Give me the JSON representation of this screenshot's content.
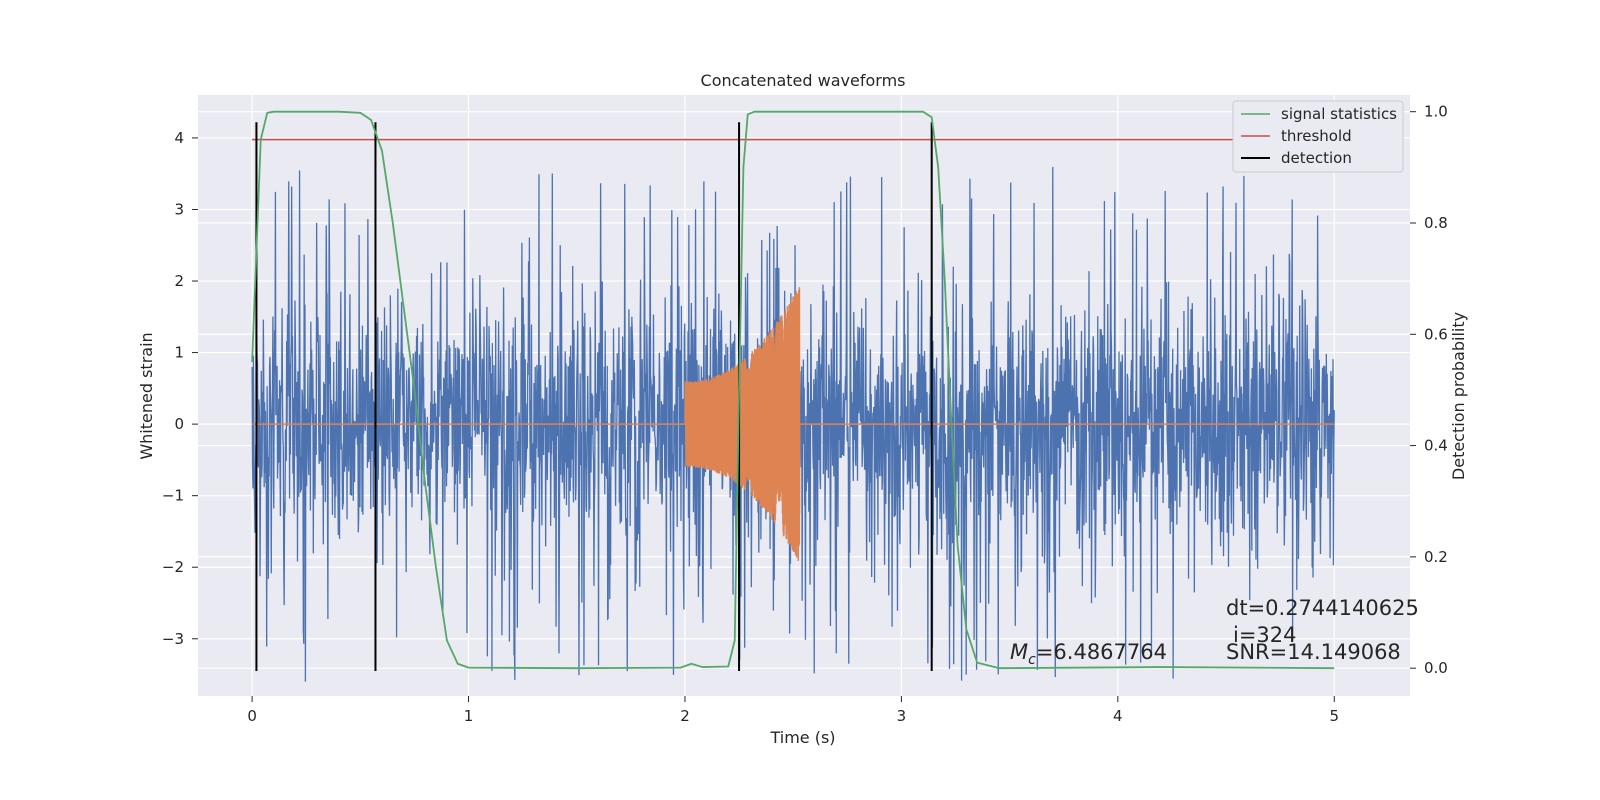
{
  "chart_data": {
    "type": "line",
    "title": "Concatenated waveforms",
    "xlabel": "Time (s)",
    "ylabel": "Whitened strain",
    "y2label": "Detection probability",
    "xlim": [
      -0.25,
      5.35
    ],
    "ylim": [
      -3.8,
      4.6
    ],
    "y2lim": [
      -0.05,
      1.03
    ],
    "xticks": [
      "0",
      "1",
      "2",
      "3",
      "4",
      "5"
    ],
    "xtick_values": [
      0,
      1,
      2,
      3,
      4,
      5
    ],
    "yticks": [
      "−3",
      "−2",
      "−1",
      "0",
      "1",
      "2",
      "3",
      "4"
    ],
    "ytick_values": [
      -3,
      -2,
      -1,
      0,
      1,
      2,
      3,
      4
    ],
    "y2ticks": [
      "0.0",
      "0.2",
      "0.4",
      "0.6",
      "0.8",
      "1.0"
    ],
    "y2tick_values": [
      0.0,
      0.2,
      0.4,
      0.6,
      0.8,
      1.0
    ],
    "grid": true,
    "legend_position": "top-right",
    "series": [
      {
        "name": "",
        "kind": "noisy strain",
        "color": "#4c72b0",
        "x_range": [
          0,
          5
        ],
        "typical_amplitude": 1.15,
        "peak_amplitude": 3.6
      },
      {
        "name": "",
        "kind": "injected chirp",
        "color": "#dd8452",
        "chirp_start": 2.0,
        "chirp_end": 2.53,
        "start_amplitude": 0.6,
        "peak_amplitude": 1.95
      },
      {
        "name": "signal statistics",
        "axis": "right",
        "color": "#55a868",
        "points": [
          [
            0.0,
            0.55
          ],
          [
            0.02,
            0.75
          ],
          [
            0.04,
            0.95
          ],
          [
            0.07,
            0.998
          ],
          [
            0.1,
            1.0
          ],
          [
            0.4,
            1.0
          ],
          [
            0.5,
            0.998
          ],
          [
            0.55,
            0.985
          ],
          [
            0.6,
            0.93
          ],
          [
            0.65,
            0.8
          ],
          [
            0.7,
            0.65
          ],
          [
            0.75,
            0.5
          ],
          [
            0.8,
            0.33
          ],
          [
            0.85,
            0.18
          ],
          [
            0.9,
            0.05
          ],
          [
            0.95,
            0.008
          ],
          [
            1.0,
            0.001
          ],
          [
            1.5,
            0.0
          ],
          [
            1.98,
            0.001
          ],
          [
            2.03,
            0.008
          ],
          [
            2.08,
            0.002
          ],
          [
            2.2,
            0.003
          ],
          [
            2.23,
            0.05
          ],
          [
            2.25,
            0.5
          ],
          [
            2.27,
            0.9
          ],
          [
            2.29,
            0.995
          ],
          [
            2.32,
            1.0
          ],
          [
            3.1,
            1.0
          ],
          [
            3.14,
            0.99
          ],
          [
            3.17,
            0.9
          ],
          [
            3.2,
            0.7
          ],
          [
            3.23,
            0.45
          ],
          [
            3.26,
            0.22
          ],
          [
            3.3,
            0.07
          ],
          [
            3.35,
            0.01
          ],
          [
            3.45,
            0.0
          ],
          [
            4.2,
            0.002
          ],
          [
            5.0,
            0.0
          ]
        ]
      },
      {
        "name": "threshold",
        "axis": "right",
        "color": "#c44e52",
        "value": 0.95,
        "x_range": [
          0,
          5.1
        ]
      },
      {
        "name": "detection",
        "color": "#000000",
        "x": [
          0.02,
          0.57,
          2.25,
          3.14
        ],
        "y_range": [
          -3.45,
          4.22
        ]
      }
    ],
    "annotations": {
      "chirp_mass": "=6.4867764",
      "chirp_mass_symbol": "M",
      "chirp_mass_sub": "c",
      "dt": "dt=0.2744140625",
      "index": "i=324",
      "snr": "SNR=14.149068"
    }
  }
}
